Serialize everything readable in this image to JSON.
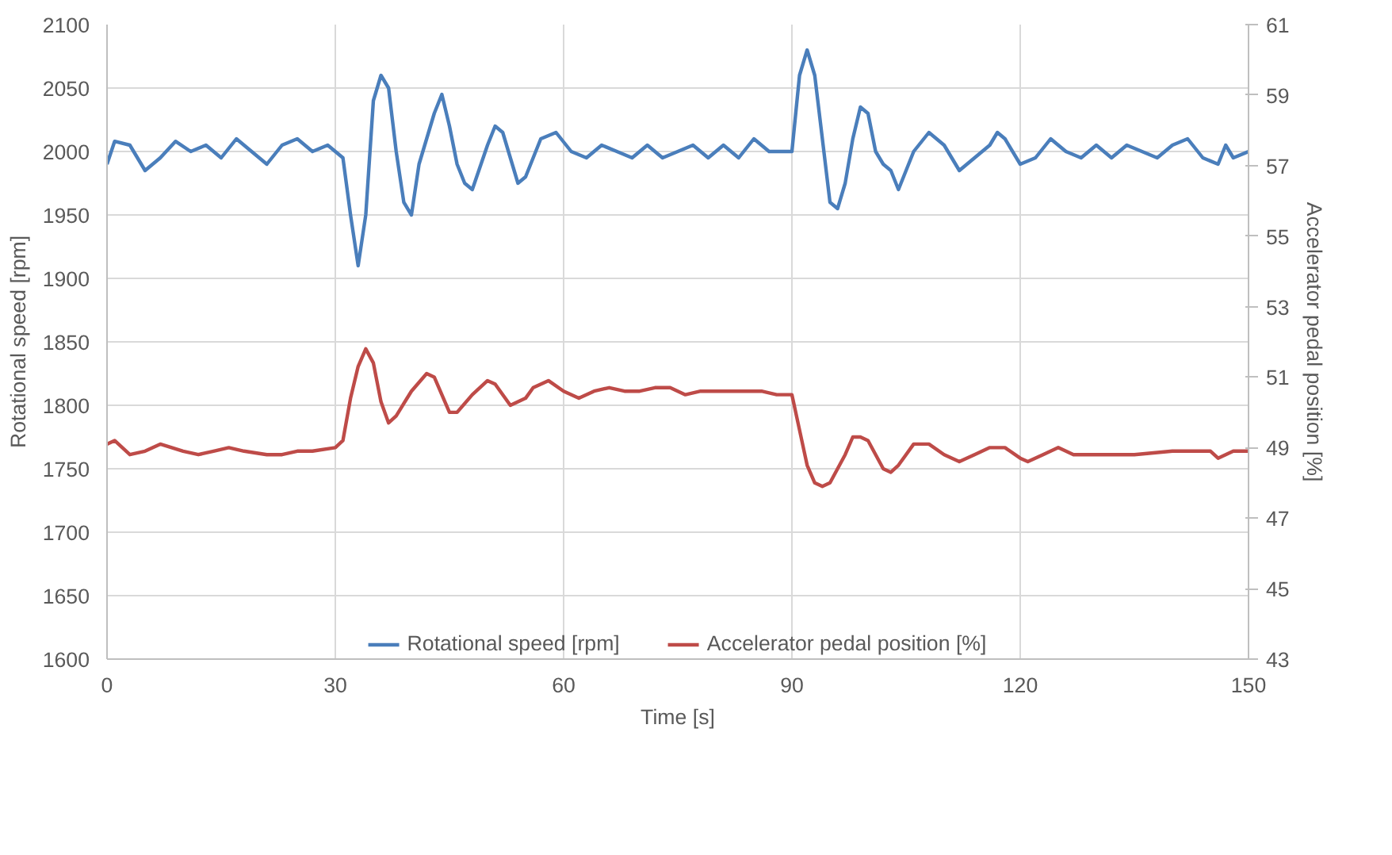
{
  "chart_data": {
    "type": "line",
    "xlabel": "Time [s]",
    "ylabel": "Rotational speed [rpm]",
    "y2label": "Accelerator pedal position [%]",
    "xlim": [
      0,
      150
    ],
    "xticks": [
      0,
      30,
      60,
      90,
      120,
      150
    ],
    "ylim": [
      1600,
      2100
    ],
    "yticks": [
      1600,
      1650,
      1700,
      1750,
      1800,
      1850,
      1900,
      1950,
      2000,
      2050,
      2100
    ],
    "y2lim": [
      43,
      61
    ],
    "y2ticks": [
      43,
      45,
      47,
      49,
      51,
      53,
      55,
      57,
      59,
      61
    ],
    "grid": true,
    "legend": "bottom",
    "line_style": "solid",
    "marker": "none",
    "series": [
      {
        "name": "Rotational speed [rpm]",
        "color": "#4a7ebb",
        "x": [
          0,
          1,
          3,
          5,
          7,
          9,
          11,
          13,
          15,
          17,
          19,
          21,
          23,
          25,
          27,
          29,
          31,
          32,
          33,
          34,
          35,
          36,
          37,
          38,
          39,
          40,
          41,
          43,
          44,
          45,
          46,
          47,
          48,
          50,
          51,
          52,
          54,
          55,
          56,
          57,
          59,
          61,
          63,
          65,
          67,
          69,
          71,
          73,
          75,
          77,
          79,
          81,
          83,
          85,
          87,
          89,
          90,
          91,
          92,
          93,
          94,
          95,
          96,
          97,
          98,
          99,
          100,
          101,
          102,
          103,
          104,
          105,
          106,
          108,
          110,
          112,
          114,
          116,
          117,
          118,
          120,
          122,
          124,
          126,
          128,
          130,
          132,
          134,
          136,
          138,
          140,
          142,
          144,
          146,
          147,
          148,
          150
        ],
        "values": [
          1990,
          2008,
          2005,
          1985,
          1995,
          2008,
          2000,
          2005,
          1995,
          2010,
          2000,
          1990,
          2005,
          2010,
          2000,
          2005,
          1995,
          1950,
          1910,
          1950,
          2040,
          2060,
          2050,
          2000,
          1960,
          1950,
          1990,
          2030,
          2045,
          2020,
          1990,
          1975,
          1970,
          2005,
          2020,
          2015,
          1975,
          1980,
          1995,
          2010,
          2015,
          2000,
          1995,
          2005,
          2000,
          1995,
          2005,
          1995,
          2000,
          2005,
          1995,
          2005,
          1995,
          2010,
          2000,
          2000,
          2000,
          2060,
          2080,
          2060,
          2010,
          1960,
          1955,
          1975,
          2010,
          2035,
          2030,
          2000,
          1990,
          1985,
          1970,
          1985,
          2000,
          2015,
          2005,
          1985,
          1995,
          2005,
          2015,
          2010,
          1990,
          1995,
          2010,
          2000,
          1995,
          2005,
          1995,
          2005,
          2000,
          1995,
          2005,
          2010,
          1995,
          1990,
          2005,
          1995,
          2000
        ]
      },
      {
        "name": "Accelerator pedal position [%]",
        "color": "#be4b48",
        "axis": "y2",
        "x": [
          0,
          1,
          3,
          5,
          7,
          10,
          12,
          14,
          16,
          18,
          21,
          23,
          25,
          27,
          30,
          31,
          32,
          33,
          34,
          35,
          36,
          37,
          38,
          40,
          42,
          43,
          44,
          45,
          46,
          48,
          50,
          51,
          53,
          55,
          56,
          58,
          60,
          62,
          64,
          66,
          68,
          70,
          72,
          74,
          76,
          78,
          80,
          82,
          84,
          86,
          88,
          90,
          91,
          92,
          93,
          94,
          95,
          97,
          98,
          99,
          100,
          101,
          102,
          103,
          104,
          105,
          106,
          108,
          110,
          112,
          114,
          116,
          118,
          120,
          121,
          123,
          125,
          127,
          130,
          135,
          140,
          145,
          146,
          148,
          150
        ],
        "values": [
          49.1,
          49.2,
          48.8,
          48.9,
          49.1,
          48.9,
          48.8,
          48.9,
          49.0,
          48.9,
          48.8,
          48.8,
          48.9,
          48.9,
          49.0,
          49.2,
          50.4,
          51.3,
          51.8,
          51.4,
          50.3,
          49.7,
          49.9,
          50.6,
          51.1,
          51.0,
          50.5,
          50.0,
          50.0,
          50.5,
          50.9,
          50.8,
          50.2,
          50.4,
          50.7,
          50.9,
          50.6,
          50.4,
          50.6,
          50.7,
          50.6,
          50.6,
          50.7,
          50.7,
          50.5,
          50.6,
          50.6,
          50.6,
          50.6,
          50.6,
          50.5,
          50.5,
          49.5,
          48.5,
          48.0,
          47.9,
          48.0,
          48.8,
          49.3,
          49.3,
          49.2,
          48.8,
          48.4,
          48.3,
          48.5,
          48.8,
          49.1,
          49.1,
          48.8,
          48.6,
          48.8,
          49.0,
          49.0,
          48.7,
          48.6,
          48.8,
          49.0,
          48.8,
          48.8,
          48.8,
          48.9,
          48.9,
          48.7,
          48.9,
          48.9
        ]
      }
    ]
  }
}
